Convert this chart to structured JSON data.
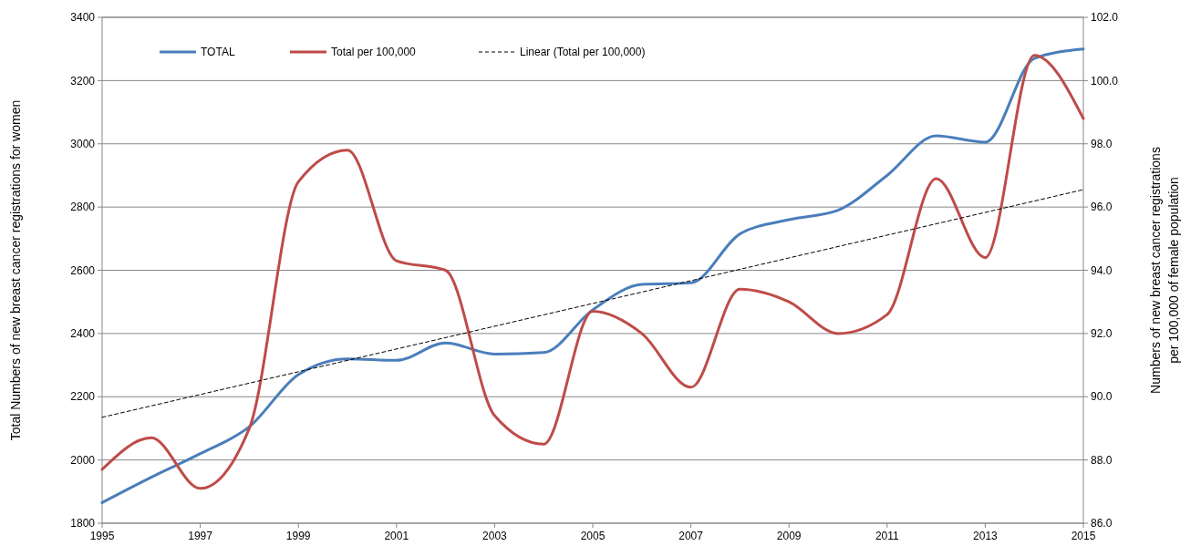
{
  "chart_data": {
    "type": "line",
    "x": [
      1995,
      1996,
      1997,
      1998,
      1999,
      2000,
      2001,
      2002,
      2003,
      2004,
      2005,
      2006,
      2007,
      2008,
      2009,
      2010,
      2011,
      2012,
      2013,
      2014,
      2015
    ],
    "xlim": [
      1995,
      2015
    ],
    "xticks": [
      1995,
      1997,
      1999,
      2001,
      2003,
      2005,
      2007,
      2009,
      2011,
      2013,
      2015
    ],
    "ylabel": "Total Numbers of new breast cancer registrations for women",
    "y2label": "Numbers of new breast cancer registrations\nper 100,000 of female population",
    "ylim": [
      1800,
      3400
    ],
    "yticks": [
      1800,
      2000,
      2200,
      2400,
      2600,
      2800,
      3000,
      3200,
      3400
    ],
    "y2lim": [
      86,
      102
    ],
    "y2ticks": [
      {
        "value": 86,
        "label": "86.0"
      },
      {
        "value": 88,
        "label": "88.0"
      },
      {
        "value": 90,
        "label": "90.0"
      },
      {
        "value": 92,
        "label": "92.0"
      },
      {
        "value": 94,
        "label": "94.0"
      },
      {
        "value": 96,
        "label": "96.0"
      },
      {
        "value": 98,
        "label": "98.0"
      },
      {
        "value": 100,
        "label": "100.0"
      },
      {
        "value": 102,
        "label": "102.0"
      }
    ],
    "grid": "y",
    "legend": "top",
    "line_style": "solid",
    "marker": "none",
    "series": [
      {
        "name": "TOTAL",
        "color": "#4a7ebb",
        "values": [
          1865,
          1945,
          2020,
          2105,
          2270,
          2320,
          2315,
          2370,
          2335,
          2340,
          2475,
          2555,
          2560,
          2715,
          2760,
          2790,
          2900,
          3025,
          3005,
          3270,
          3300
        ]
      },
      {
        "name": "Total per 100,000",
        "color": "#be4b48",
        "axis": "y2",
        "values": [
          87.7,
          88.7,
          87.1,
          89.0,
          96.8,
          97.8,
          94.3,
          94.0,
          89.4,
          88.5,
          92.7,
          92.0,
          90.3,
          93.4,
          93.0,
          92.0,
          92.6,
          96.9,
          94.4,
          100.8,
          98.8
        ]
      },
      {
        "name": "Linear (Total per 100,000)",
        "color": "#000000",
        "axis": "y2",
        "line_style": "dashed",
        "x": [
          1995,
          2015
        ],
        "values": [
          89.35,
          96.55
        ]
      }
    ]
  }
}
